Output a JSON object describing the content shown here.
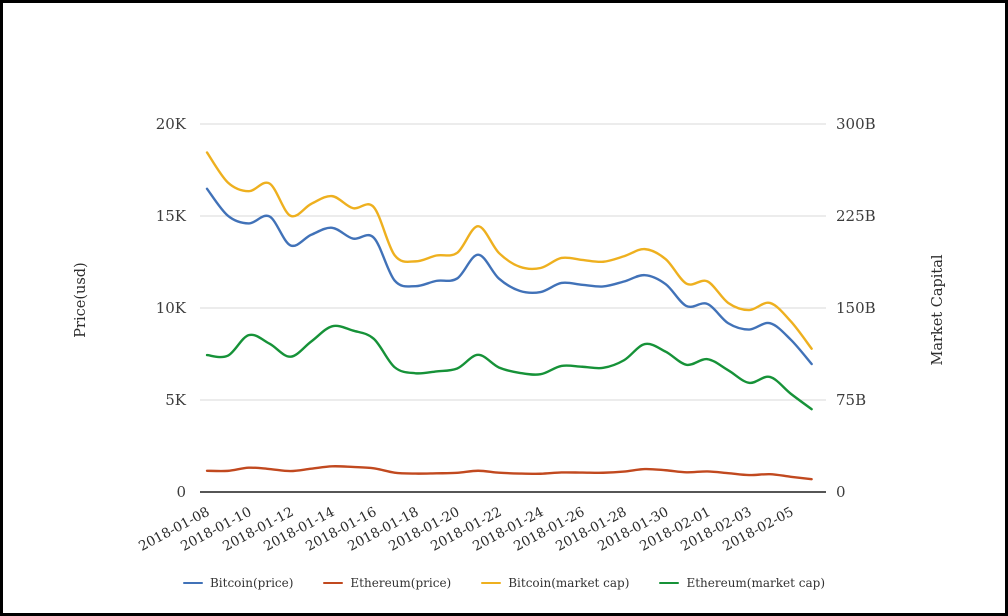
{
  "chart": {
    "left_axis": {
      "title": "Price(usd)",
      "tick_labels": [
        "0",
        "5K",
        "10K",
        "15K",
        "20K"
      ],
      "tick_values": [
        0,
        5000,
        10000,
        15000,
        20000
      ],
      "max": 20000
    },
    "right_axis": {
      "title": "Market Capital",
      "tick_labels": [
        "0",
        "75B",
        "150B",
        "225B",
        "300B"
      ],
      "tick_values": [
        0,
        75,
        150,
        225,
        300
      ],
      "max": 300
    }
  },
  "chart_data": {
    "type": "line",
    "smooth": true,
    "grid": true,
    "legend_position": "bottom",
    "x_axis_label_rotation": -28,
    "x": [
      "2018-01-08",
      "2018-01-09",
      "2018-01-10",
      "2018-01-11",
      "2018-01-12",
      "2018-01-13",
      "2018-01-14",
      "2018-01-15",
      "2018-01-16",
      "2018-01-17",
      "2018-01-18",
      "2018-01-19",
      "2018-01-20",
      "2018-01-21",
      "2018-01-22",
      "2018-01-23",
      "2018-01-24",
      "2018-01-25",
      "2018-01-26",
      "2018-01-27",
      "2018-01-28",
      "2018-01-29",
      "2018-01-30",
      "2018-01-31",
      "2018-02-01",
      "2018-02-02",
      "2018-02-03",
      "2018-02-04",
      "2018-02-05",
      "2018-02-06"
    ],
    "x_tick_labels": [
      "2018-01-08",
      "2018-01-10",
      "2018-01-12",
      "2018-01-14",
      "2018-01-16",
      "2018-01-18",
      "2018-01-20",
      "2018-01-22",
      "2018-01-24",
      "2018-01-26",
      "2018-01-28",
      "2018-01-30",
      "2018-02-01",
      "2018-02-03",
      "2018-02-05"
    ],
    "ylim_left": [
      0,
      20000
    ],
    "ylim_right": [
      0,
      300
    ],
    "series": [
      {
        "name": "Bitcoin(price)",
        "axis": "left",
        "unit": "USD",
        "color": "#4172b8",
        "values": [
          16478,
          15015,
          14595,
          14973,
          13405,
          13980,
          14360,
          13772,
          13819,
          11490,
          11188,
          11474,
          11607,
          12899,
          11600,
          10931,
          10868,
          11359,
          11259,
          11171,
          11440,
          11786,
          11296,
          10107,
          10221,
          9170,
          8830,
          9174,
          8277,
          6955
        ]
      },
      {
        "name": "Ethereum(price)",
        "axis": "left",
        "unit": "USD",
        "color": "#c1491f",
        "values": [
          1153,
          1148,
          1321,
          1249,
          1139,
          1268,
          1396,
          1360,
          1290,
          1051,
          1000,
          1015,
          1040,
          1155,
          1049,
          1003,
          992,
          1062,
          1055,
          1046,
          1110,
          1246,
          1182,
          1071,
          1119,
          1025,
          919,
          969,
          828,
          697
        ]
      },
      {
        "name": "Bitcoin(market cap)",
        "axis": "right",
        "unit": "B USD",
        "color": "#eeb01f",
        "values": [
          276.8,
          252.3,
          245.2,
          251.5,
          225.2,
          234.9,
          241.2,
          231.4,
          232.2,
          193.0,
          188.0,
          192.8,
          195.0,
          216.7,
          194.9,
          183.6,
          182.6,
          190.8,
          189.2,
          187.7,
          192.2,
          198.0,
          189.8,
          169.8,
          171.7,
          154.1,
          148.3,
          154.1,
          139.1,
          116.8
        ]
      },
      {
        "name": "Ethereum(market cap)",
        "axis": "right",
        "unit": "B USD",
        "color": "#169238",
        "values": [
          111.6,
          111.1,
          127.9,
          120.9,
          110.3,
          122.7,
          135.1,
          131.6,
          124.9,
          101.7,
          96.8,
          98.3,
          100.7,
          111.8,
          101.5,
          97.1,
          96.0,
          102.8,
          102.1,
          101.2,
          107.4,
          120.6,
          114.4,
          103.7,
          108.3,
          99.2,
          89.0,
          93.8,
          80.1,
          67.5
        ]
      }
    ],
    "title": ""
  }
}
